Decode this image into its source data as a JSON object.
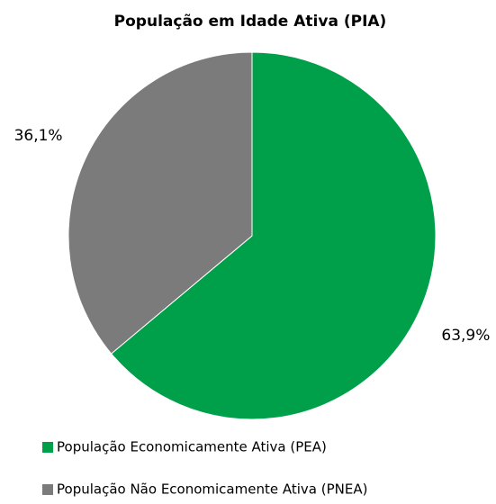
{
  "chart_data": {
    "type": "pie",
    "title": "População em Idade Ativa (PIA)",
    "categories": [
      "População Economicamente Ativa (PEA)",
      "População Não Economicamente Ativa (PNEA)"
    ],
    "values": [
      63.9,
      36.1
    ],
    "value_labels": [
      "63,9%",
      "36,1%"
    ],
    "colors": [
      "#00a04a",
      "#7b7b7b"
    ]
  }
}
